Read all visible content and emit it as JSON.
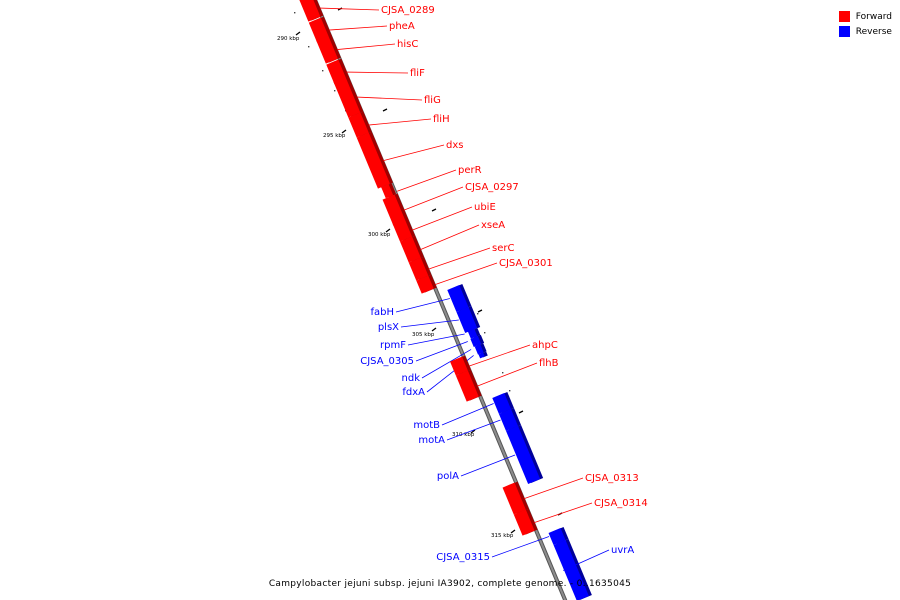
{
  "colors": {
    "forward": "#ff0000",
    "reverse": "#0000ff",
    "backbone": "#8c8c8c"
  },
  "legend": [
    {
      "label": "Forward",
      "strand": "forward"
    },
    {
      "label": "Reverse",
      "strand": "reverse"
    }
  ],
  "caption": "Campylobacter jejuni subsp. jejuni IA3902, complete genome. - 0..1635045",
  "ticks": [
    {
      "label": "290 kbp",
      "kbp": 290
    },
    {
      "label": "295 kbp",
      "kbp": 295
    },
    {
      "label": "300 kbp",
      "kbp": 300
    },
    {
      "label": "305 kbp",
      "kbp": 305
    },
    {
      "label": "310 kbp",
      "kbp": 310
    },
    {
      "label": "315 kbp",
      "kbp": 315
    }
  ],
  "genes": [
    {
      "name": "CJSA_0289",
      "strand": "forward"
    },
    {
      "name": "pheA",
      "strand": "forward"
    },
    {
      "name": "hisC",
      "strand": "forward"
    },
    {
      "name": "fliF",
      "strand": "forward"
    },
    {
      "name": "fliG",
      "strand": "forward"
    },
    {
      "name": "fliH",
      "strand": "forward"
    },
    {
      "name": "dxs",
      "strand": "forward"
    },
    {
      "name": "perR",
      "strand": "forward"
    },
    {
      "name": "CJSA_0297",
      "strand": "forward"
    },
    {
      "name": "ubiE",
      "strand": "forward"
    },
    {
      "name": "xseA",
      "strand": "forward"
    },
    {
      "name": "serC",
      "strand": "forward"
    },
    {
      "name": "CJSA_0301",
      "strand": "forward"
    },
    {
      "name": "fabH",
      "strand": "reverse"
    },
    {
      "name": "plsX",
      "strand": "reverse"
    },
    {
      "name": "rpmF",
      "strand": "reverse"
    },
    {
      "name": "CJSA_0305",
      "strand": "reverse"
    },
    {
      "name": "ndk",
      "strand": "reverse"
    },
    {
      "name": "fdxA",
      "strand": "reverse"
    },
    {
      "name": "ahpC",
      "strand": "forward"
    },
    {
      "name": "flhB",
      "strand": "forward"
    },
    {
      "name": "motB",
      "strand": "reverse"
    },
    {
      "name": "motA",
      "strand": "reverse"
    },
    {
      "name": "polA",
      "strand": "reverse"
    },
    {
      "name": "CJSA_0313",
      "strand": "forward"
    },
    {
      "name": "CJSA_0314",
      "strand": "forward"
    },
    {
      "name": "CJSA_0315",
      "strand": "reverse"
    },
    {
      "name": "uvrA",
      "strand": "reverse"
    }
  ]
}
